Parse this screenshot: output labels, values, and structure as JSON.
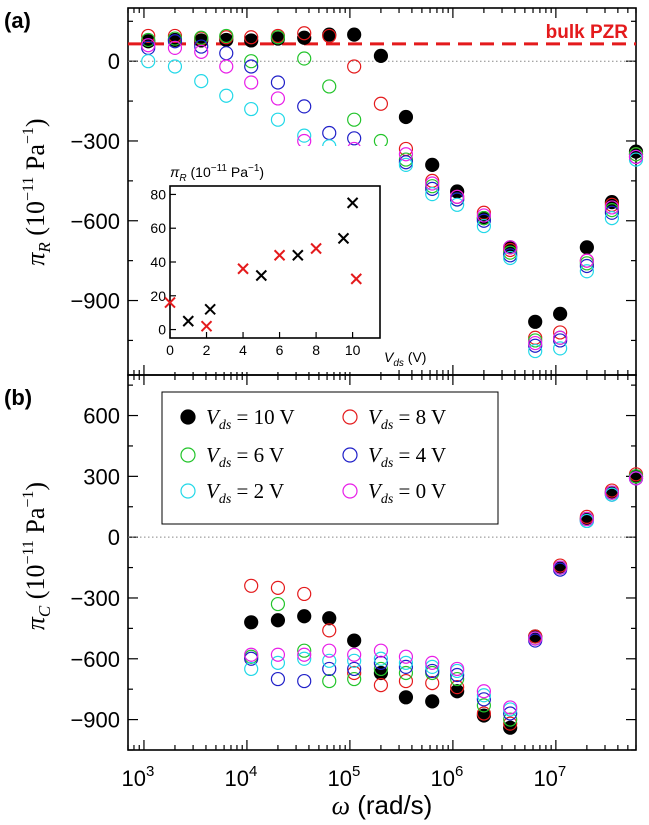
{
  "chart_data": [
    {
      "panel": "(a)",
      "type": "scatter",
      "x_scale": "log",
      "xlim": [
        700,
        60000000
      ],
      "ylim": [
        -1180,
        200
      ],
      "yticks": [
        0,
        -300,
        -600,
        -900
      ],
      "ylabel": "π_R (10^-11 Pa^-1)",
      "reference_line": {
        "label": "bulk PZR",
        "y": 65,
        "color": "#e41a1c"
      },
      "series": [
        {
          "name": "V_ds = 10 V",
          "color": "#000000",
          "filled": true,
          "x": [
            1100,
            2000,
            3600,
            6300,
            11000,
            20000,
            36000,
            63000,
            110000,
            200000,
            350000,
            630000,
            1100000,
            2000000,
            3600000,
            6300000,
            11000000,
            20000000,
            35000000,
            60000000
          ],
          "y": [
            75,
            80,
            78,
            80,
            78,
            85,
            88,
            100,
            100,
            20,
            -210,
            -390,
            -490,
            -590,
            -700,
            -980,
            -950,
            -700,
            -530,
            -340
          ]
        },
        {
          "name": "V_ds = 8 V",
          "color": "#e41a1c",
          "filled": false,
          "x": [
            1100,
            2000,
            3600,
            6300,
            11000,
            20000,
            36000,
            63000,
            110000,
            200000,
            350000,
            630000,
            1100000,
            2000000,
            3600000,
            6300000,
            11000000,
            20000000,
            35000000,
            60000000
          ],
          "y": [
            95,
            95,
            85,
            90,
            90,
            95,
            105,
            95,
            -20,
            -160,
            -330,
            -450,
            -510,
            -570,
            -710,
            -1040,
            -1020,
            -750,
            -540,
            -350
          ]
        },
        {
          "name": "V_ds = 6 V",
          "color": "#22c42a",
          "filled": false,
          "x": [
            1100,
            2000,
            3600,
            6300,
            11000,
            20000,
            36000,
            63000,
            110000,
            200000,
            350000,
            630000,
            1100000,
            2000000,
            3600000,
            6300000,
            11000000,
            20000000,
            35000000,
            60000000
          ],
          "y": [
            80,
            85,
            88,
            95,
            0,
            90,
            10,
            -95,
            -220,
            -300,
            -370,
            -470,
            -520,
            -590,
            -720,
            -1050,
            -1040,
            -760,
            -560,
            -350
          ]
        },
        {
          "name": "V_ds = 4 V",
          "color": "#1f1fc8",
          "filled": false,
          "x": [
            1100,
            2000,
            3600,
            6300,
            11000,
            20000,
            36000,
            63000,
            110000,
            200000,
            350000,
            630000,
            1100000,
            2000000,
            3600000,
            6300000,
            11000000,
            20000000,
            35000000,
            60000000
          ],
          "y": [
            50,
            75,
            55,
            30,
            -20,
            -80,
            -170,
            -270,
            -290,
            -360,
            -380,
            -480,
            -520,
            -600,
            -730,
            -1070,
            -1050,
            -770,
            -570,
            -360
          ]
        },
        {
          "name": "V_ds = 2 V",
          "color": "#22d8e8",
          "filled": false,
          "x": [
            1100,
            2000,
            3600,
            6300,
            11000,
            20000,
            36000,
            63000,
            110000,
            200000,
            350000,
            630000,
            1100000,
            2000000,
            3600000,
            6300000,
            11000000,
            20000000,
            35000000,
            60000000
          ],
          "y": [
            0,
            -20,
            -75,
            -130,
            -180,
            -220,
            -280,
            -320,
            -370,
            -390,
            -390,
            -500,
            -540,
            -620,
            -740,
            -1090,
            -1080,
            -790,
            -590,
            -370
          ]
        },
        {
          "name": "V_ds = 0 V",
          "color": "#e81ee8",
          "filled": false,
          "x": [
            1100,
            2000,
            3600,
            6300,
            11000,
            20000,
            36000,
            63000,
            110000,
            200000,
            350000,
            630000,
            1100000,
            2000000,
            3600000,
            6300000,
            11000000,
            20000000,
            35000000,
            60000000
          ],
          "y": [
            60,
            50,
            35,
            -20,
            -80,
            -140,
            -300,
            -390,
            -330,
            -370,
            -350,
            -460,
            -510,
            -580,
            -700,
            -1060,
            -1040,
            -750,
            -550,
            -360
          ]
        }
      ]
    },
    {
      "panel": "inset",
      "type": "scatter",
      "xlabel": "V_ds (V)",
      "ylabel": "π_R (10^-11 Pa^-1)",
      "xlim": [
        0,
        11.5
      ],
      "ylim": [
        -5,
        85
      ],
      "xticks": [
        0,
        2,
        4,
        6,
        8,
        10
      ],
      "yticks": [
        0,
        20,
        40,
        60,
        80
      ],
      "series": [
        {
          "color": "#000000",
          "x": [
            1,
            2.2,
            5,
            7,
            9.5,
            10
          ],
          "y": [
            5,
            12,
            32,
            44,
            54,
            75
          ]
        },
        {
          "color": "#e41a1c",
          "x": [
            0,
            2,
            4,
            6,
            8,
            10.2
          ],
          "y": [
            16,
            2,
            36,
            44,
            48,
            30
          ]
        }
      ]
    },
    {
      "panel": "(b)",
      "type": "scatter",
      "x_scale": "log",
      "xlim": [
        700,
        60000000
      ],
      "ylim": [
        -1050,
        800
      ],
      "yticks": [
        600,
        300,
        0,
        -300,
        -600,
        -900
      ],
      "ylabel": "π_C (10^-11 Pa^-1)",
      "xlabel": "ω (rad/s)",
      "series": [
        {
          "name": "V_ds = 10 V",
          "color": "#000000",
          "filled": true,
          "x": [
            11000,
            20000,
            36000,
            63000,
            110000,
            200000,
            350000,
            630000,
            1100000,
            2000000,
            3600000,
            6300000,
            11000000,
            20000000,
            35000000,
            60000000
          ],
          "y": [
            -420,
            -410,
            -390,
            -400,
            -510,
            -670,
            -790,
            -810,
            -760,
            -880,
            -940,
            -490,
            -150,
            90,
            220,
            300
          ]
        },
        {
          "name": "V_ds = 8 V",
          "color": "#e41a1c",
          "filled": false,
          "x": [
            11000,
            20000,
            36000,
            63000,
            110000,
            200000,
            350000,
            630000,
            1100000,
            2000000,
            3600000,
            6300000,
            11000000,
            20000000,
            35000000,
            60000000
          ],
          "y": [
            -240,
            -250,
            -280,
            -460,
            -670,
            -730,
            -710,
            -720,
            -740,
            -870,
            -920,
            -490,
            -140,
            100,
            230,
            310
          ]
        },
        {
          "name": "V_ds = 6 V",
          "color": "#22c42a",
          "filled": false,
          "x": [
            11000,
            20000,
            36000,
            63000,
            110000,
            200000,
            350000,
            630000,
            1100000,
            2000000,
            3600000,
            6300000,
            11000000,
            20000000,
            35000000,
            60000000
          ],
          "y": [
            -590,
            -330,
            -560,
            -710,
            -700,
            -650,
            -670,
            -670,
            -700,
            -830,
            -900,
            -500,
            -150,
            90,
            220,
            300
          ]
        },
        {
          "name": "V_ds = 4 V",
          "color": "#1f1fc8",
          "filled": false,
          "x": [
            11000,
            20000,
            36000,
            63000,
            110000,
            200000,
            350000,
            630000,
            1100000,
            2000000,
            3600000,
            6300000,
            11000000,
            20000000,
            35000000,
            60000000
          ],
          "y": [
            -600,
            -700,
            -710,
            -650,
            -650,
            -620,
            -640,
            -660,
            -680,
            -800,
            -870,
            -510,
            -160,
            80,
            210,
            290
          ]
        },
        {
          "name": "V_ds = 2 V",
          "color": "#22d8e8",
          "filled": false,
          "x": [
            11000,
            20000,
            36000,
            63000,
            110000,
            200000,
            350000,
            630000,
            1100000,
            2000000,
            3600000,
            6300000,
            11000000,
            20000000,
            35000000,
            60000000
          ],
          "y": [
            -650,
            -620,
            -600,
            -610,
            -610,
            -600,
            -620,
            -640,
            -660,
            -780,
            -850,
            -500,
            -150,
            80,
            210,
            290
          ]
        },
        {
          "name": "V_ds = 0 V",
          "color": "#e81ee8",
          "filled": false,
          "x": [
            11000,
            20000,
            36000,
            63000,
            110000,
            200000,
            350000,
            630000,
            1100000,
            2000000,
            3600000,
            6300000,
            11000000,
            20000000,
            35000000,
            60000000
          ],
          "y": [
            -580,
            -580,
            -580,
            -560,
            -580,
            -560,
            -590,
            -620,
            -650,
            -760,
            -840,
            -500,
            -150,
            90,
            220,
            290
          ]
        }
      ]
    }
  ],
  "legend": {
    "entries": [
      {
        "label": "= 10 V",
        "color": "#000000",
        "filled": true
      },
      {
        "label": "= 8 V",
        "color": "#e41a1c",
        "filled": false
      },
      {
        "label": "= 6 V",
        "color": "#22c42a",
        "filled": false
      },
      {
        "label": "= 4 V",
        "color": "#1f1fc8",
        "filled": false
      },
      {
        "label": "= 2 V",
        "color": "#22d8e8",
        "filled": false
      },
      {
        "label": "= 0 V",
        "color": "#e81ee8",
        "filled": false
      }
    ]
  },
  "x_ticks_labels": [
    "10",
    "10",
    "10",
    "10",
    "10"
  ],
  "x_ticks_exponents": [
    "3",
    "4",
    "5",
    "6",
    "7"
  ],
  "x_tick_values": [
    1000,
    10000,
    100000,
    1000000,
    10000000
  ]
}
